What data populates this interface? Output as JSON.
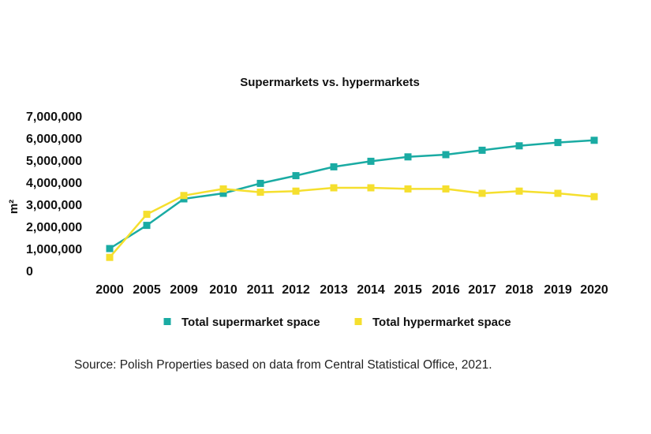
{
  "chart_data": {
    "type": "line",
    "title": "Supermarkets vs. hypermarkets",
    "ylabel": "m²",
    "xlabel": "",
    "categories": [
      "2000",
      "2005",
      "2009",
      "2010",
      "2011",
      "2012",
      "2013",
      "2014",
      "2015",
      "2016",
      "2017",
      "2018",
      "2019",
      "2020"
    ],
    "y_ticks": [
      "0",
      "1,000,000",
      "2,000,000",
      "3,000,000",
      "4,000,000",
      "5,000,000",
      "6,000,000",
      "7,000,000"
    ],
    "ylim": [
      0,
      7000000
    ],
    "grid": false,
    "legend_position": "bottom",
    "series": [
      {
        "name": "Total supermarket space",
        "color": "#1aaba3",
        "values": [
          1000000,
          2050000,
          3250000,
          3500000,
          3950000,
          4300000,
          4700000,
          4950000,
          5150000,
          5250000,
          5450000,
          5650000,
          5800000,
          5900000
        ]
      },
      {
        "name": "Total hypermarket space",
        "color": "#f5df2e",
        "values": [
          600000,
          2550000,
          3400000,
          3700000,
          3550000,
          3600000,
          3750000,
          3750000,
          3700000,
          3700000,
          3500000,
          3600000,
          3500000,
          3350000
        ]
      }
    ]
  },
  "source": "Source: Polish Properties based on data from Central Statistical Office, 2021."
}
